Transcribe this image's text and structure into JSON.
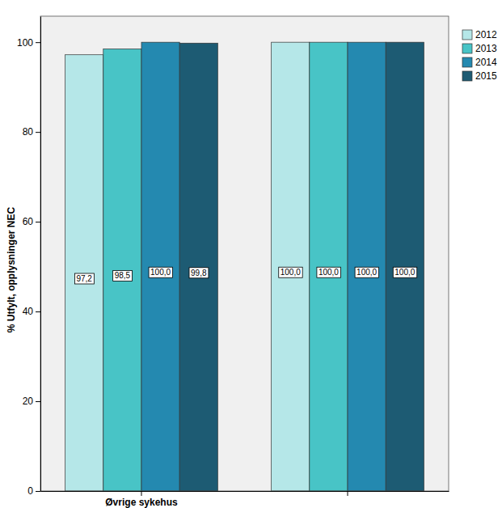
{
  "chart_data": {
    "type": "bar",
    "y_label": "% Utfylt, opplysninger NEC",
    "categories": [
      "Øvrige sykehus",
      null
    ],
    "series": [
      {
        "name": "2012",
        "color": "#b5e7e8",
        "values": [
          97.2,
          100.0
        ],
        "value_labels": [
          "97,2",
          "100,0"
        ]
      },
      {
        "name": "2013",
        "color": "#48c4c6",
        "values": [
          98.5,
          100.0
        ],
        "value_labels": [
          "98,5",
          "100,0"
        ]
      },
      {
        "name": "2014",
        "color": "#2489b0",
        "values": [
          100.0,
          100.0
        ],
        "value_labels": [
          "100,0",
          "100,0"
        ]
      },
      {
        "name": "2015",
        "color": "#1d5b73",
        "values": [
          99.8,
          100.0
        ],
        "value_labels": [
          "99,8",
          "100,0"
        ]
      }
    ],
    "ylim": [
      0,
      105.8
    ],
    "yticks": [
      0,
      20,
      40,
      60,
      80,
      100
    ],
    "grid": false,
    "legend": "top-right",
    "data_labels": true
  }
}
